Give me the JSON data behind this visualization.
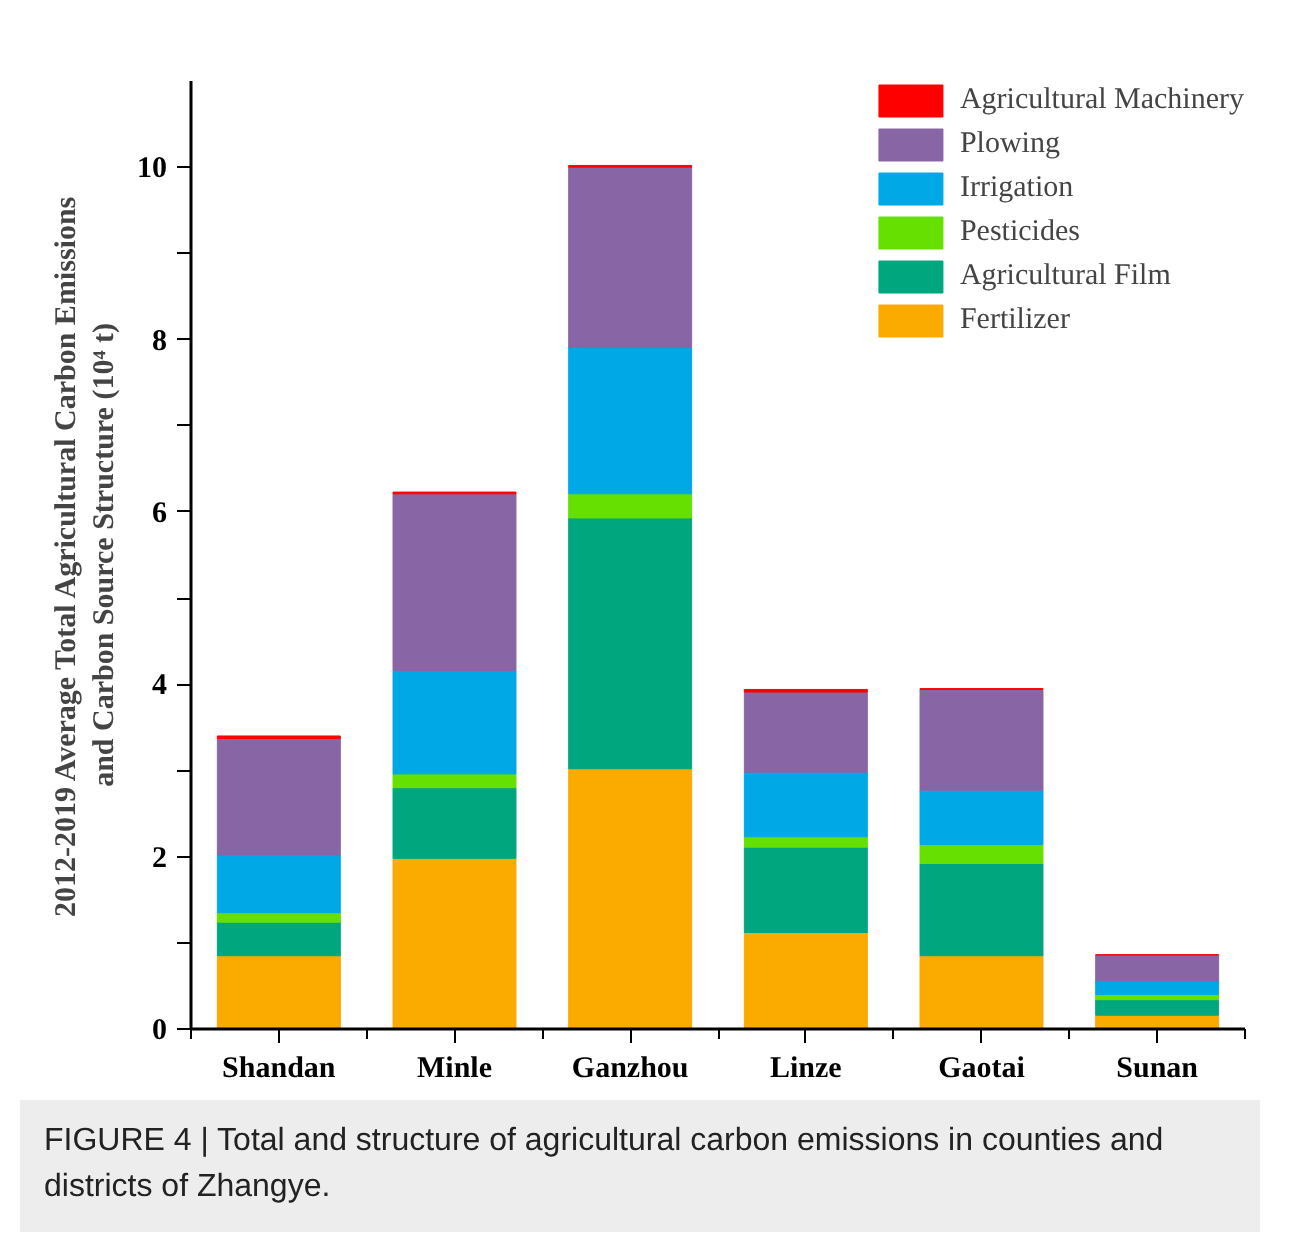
{
  "chart_data": {
    "type": "bar",
    "stacked": true,
    "ylabel": "2012-2019 Average Total Agricultural Carbon Emissions\nand Carbon Source Structure (10⁴ t)",
    "categories": [
      "Shandan",
      "Minle",
      "Ganzhou",
      "Linze",
      "Gaotai",
      "Sunan"
    ],
    "series": [
      {
        "name": "Fertilizer",
        "color": "#fbaa00",
        "values": [
          0.85,
          1.98,
          3.02,
          1.12,
          0.85,
          0.16
        ]
      },
      {
        "name": "Agricultural Film",
        "color": "#00a67e",
        "values": [
          0.39,
          0.82,
          2.91,
          0.99,
          1.07,
          0.18
        ]
      },
      {
        "name": "Pesticides",
        "color": "#66e000",
        "values": [
          0.11,
          0.16,
          0.28,
          0.12,
          0.22,
          0.06
        ]
      },
      {
        "name": "Irrigation",
        "color": "#00a8e6",
        "values": [
          0.67,
          1.2,
          1.7,
          0.75,
          0.63,
          0.16
        ]
      },
      {
        "name": "Plowing",
        "color": "#8866a5",
        "values": [
          1.35,
          2.05,
          2.09,
          0.93,
          1.17,
          0.3
        ]
      },
      {
        "name": "Agricultural Machinery",
        "color": "#ff0000",
        "values": [
          0.03,
          0.02,
          0.02,
          0.03,
          0.01,
          0
        ]
      }
    ],
    "ylim": [
      0,
      11
    ],
    "yticks": [
      0,
      {
        "value": 1,
        "label": null
      },
      2,
      {
        "value": 3,
        "label": null
      },
      4,
      {
        "value": 5,
        "label": null
      },
      6,
      {
        "value": 7,
        "label": null
      },
      8,
      {
        "value": 9,
        "label": null
      },
      10
    ],
    "grid": false,
    "legend": "top right",
    "annotations": [
      "FIGURE 4 | Total and structure of agricultural carbon emissions in counties and districts of Zhangye."
    ]
  }
}
